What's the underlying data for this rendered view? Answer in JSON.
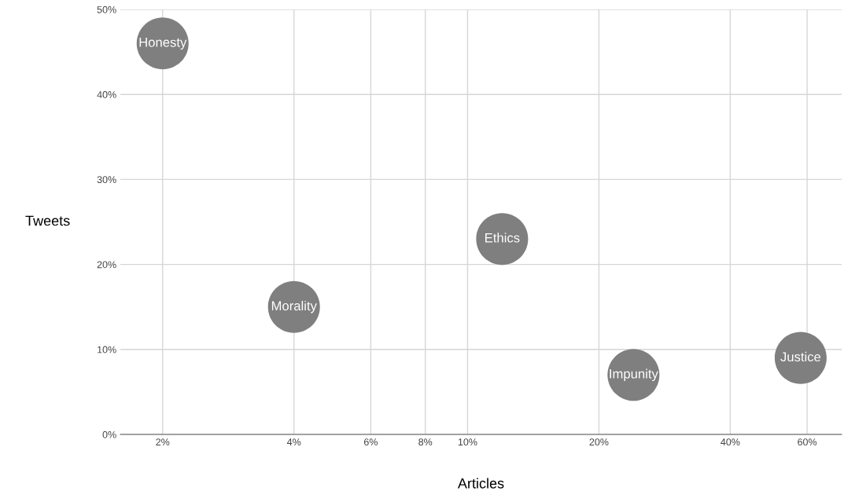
{
  "chart_data": {
    "type": "bubble",
    "xlabel": "Articles",
    "ylabel": "Tweets",
    "log": "x",
    "x": [
      2,
      4,
      12,
      24,
      58
    ],
    "series": [
      {
        "color": "#7f7f7f",
        "values": [
          46,
          15,
          23,
          7,
          9
        ],
        "sizes": [
          1,
          1,
          1,
          1,
          1
        ]
      }
    ],
    "annotations": [
      {
        "text": "Honesty",
        "x": 2,
        "y": 46
      },
      {
        "text": "Morality",
        "x": 4,
        "y": 15
      },
      {
        "text": "Ethics",
        "x": 12,
        "y": 23
      },
      {
        "text": "Impunity",
        "x": 24,
        "y": 7
      },
      {
        "text": "Justice",
        "x": 58,
        "y": 9
      }
    ],
    "xlim": [
      1.6,
      72
    ],
    "ylim": [
      0,
      50
    ],
    "xticks": [
      {
        "value": 2,
        "label": "2%"
      },
      {
        "value": 4,
        "label": "4%"
      },
      {
        "value": 6,
        "label": "6%"
      },
      {
        "value": 8,
        "label": "8%"
      },
      {
        "value": 10,
        "label": "10%"
      },
      {
        "value": 20,
        "label": "20%"
      },
      {
        "value": 40,
        "label": "40%"
      },
      {
        "value": 60,
        "label": "60%"
      }
    ],
    "yticks": [
      {
        "value": 0,
        "label": "0%"
      },
      {
        "value": 10,
        "label": "10%"
      },
      {
        "value": 20,
        "label": "20%"
      },
      {
        "value": 30,
        "label": "30%"
      },
      {
        "value": 40,
        "label": "40%"
      },
      {
        "value": 50,
        "label": "50%"
      }
    ],
    "grid": true
  }
}
